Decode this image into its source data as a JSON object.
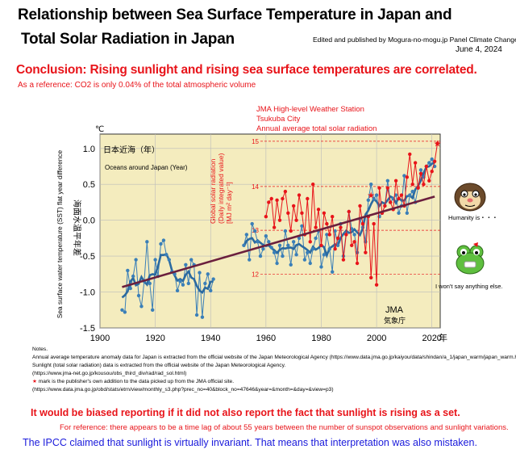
{
  "header": {
    "title_line1": "Relationship between Sea Surface Temperature in Japan and",
    "title_line2": "Total Solar Radiation in Japan",
    "credit": "Edited and published by Mogura-no-mogu.jp  Panel  Climate Change",
    "date": "June 4, 2024",
    "conclusion": "Conclusion: Rising sunlight and rising sea surface temperatures are correlated.",
    "co2_note": "As a reference: CO2 is only 0.04% of the total atmospheric volume"
  },
  "colors": {
    "red": "#e8141a",
    "blue_series": "#3a7fb8",
    "trend": "#6b1f3d",
    "plot_bg": "#f4ecbe",
    "ipcc_blue": "#1a1adb"
  },
  "chart_data": {
    "type": "line",
    "unit_label": "℃",
    "ylabel": "Sea surface water temperature (SST) flat year difference",
    "ylabel_jp": "海面水温平年差",
    "inner_label_jp": "日本近海（年）",
    "inner_label_en": "Oceans around Japan (Year)",
    "source_jp": "JMA",
    "source_jp2": "気象庁",
    "xlim": [
      1900,
      2023
    ],
    "ylim": [
      -1.5,
      1.2
    ],
    "x_ticks": [
      1900,
      1920,
      1940,
      1960,
      1980,
      2000,
      2020
    ],
    "x_tick_labels": [
      "1900",
      "1920",
      "1940",
      "1960",
      "1980",
      "2000",
      "2020"
    ],
    "x_unit": "年",
    "y_ticks": [
      1.0,
      0.5,
      0.0,
      -0.5,
      -1.0,
      -1.5
    ],
    "y_tick_labels": [
      "1.0",
      "0.5",
      "0.0",
      "-0.5",
      "-1.0",
      "-1.5"
    ],
    "right_axis": {
      "label_lines": [
        "Global solar radiation",
        "(Daily integrated value)",
        "[MJ m² day⁻¹]"
      ],
      "ticks": [
        15,
        14,
        13,
        12
      ],
      "tick_labels": [
        "15",
        "14",
        "13",
        "12"
      ],
      "sst_equivalent": [
        1.1,
        0.47,
        -0.14,
        -0.75
      ]
    },
    "station_annotation": [
      "JMA High-level Weather Station",
      "Tsukuba City",
      "Annual average total solar radiation"
    ],
    "trend": {
      "x": [
        1908,
        2021
      ],
      "y": [
        -0.93,
        0.33
      ]
    },
    "series": [
      {
        "name": "SST anomaly (annual)",
        "x": [
          1908,
          1909,
          1910,
          1911,
          1912,
          1913,
          1914,
          1915,
          1916,
          1917,
          1918,
          1919,
          1920,
          1921,
          1922,
          1923,
          1924,
          1925,
          1926,
          1927,
          1928,
          1929,
          1930,
          1931,
          1932,
          1933,
          1934,
          1935,
          1936,
          1937,
          1938,
          1939,
          1940,
          1941,
          1952,
          1953,
          1954,
          1955,
          1956,
          1957,
          1958,
          1959,
          1960,
          1961,
          1962,
          1963,
          1964,
          1965,
          1966,
          1967,
          1968,
          1969,
          1970,
          1971,
          1972,
          1973,
          1974,
          1975,
          1976,
          1977,
          1978,
          1979,
          1980,
          1981,
          1982,
          1983,
          1984,
          1985,
          1986,
          1987,
          1988,
          1989,
          1990,
          1991,
          1992,
          1993,
          1994,
          1995,
          1996,
          1997,
          1998,
          1999,
          2000,
          2001,
          2002,
          2003,
          2004,
          2005,
          2006,
          2007,
          2008,
          2009,
          2010,
          2011,
          2012,
          2013,
          2014,
          2015,
          2016,
          2017,
          2018,
          2019,
          2020,
          2021
        ],
        "values": [
          -1.25,
          -1.28,
          -0.7,
          -0.95,
          -0.78,
          -0.55,
          -1.05,
          -1.2,
          -0.85,
          -0.3,
          -0.88,
          -1.25,
          -0.55,
          -0.78,
          -0.33,
          -0.28,
          -0.48,
          -0.55,
          -0.72,
          -0.75,
          -0.98,
          -0.85,
          -0.9,
          -0.62,
          -0.88,
          -0.55,
          -0.62,
          -1.32,
          -0.73,
          -1.35,
          -0.88,
          -0.75,
          -0.98,
          -0.82,
          -0.35,
          -0.2,
          -0.55,
          -0.05,
          -0.15,
          -0.3,
          -0.5,
          -0.4,
          -0.22,
          -0.3,
          -0.38,
          -0.45,
          -0.6,
          -0.35,
          -0.5,
          -0.15,
          -0.35,
          -0.62,
          -0.3,
          -0.48,
          -0.25,
          -0.08,
          -0.55,
          -0.45,
          -0.6,
          -0.4,
          -0.25,
          -0.15,
          -0.65,
          -0.48,
          -0.2,
          -0.4,
          -0.72,
          -0.15,
          -0.35,
          -0.05,
          -0.5,
          -0.18,
          0.12,
          -0.12,
          -0.2,
          -0.45,
          0.02,
          -0.1,
          -0.3,
          0.28,
          0.5,
          0.3,
          0.35,
          0.05,
          0.1,
          0.2,
          0.55,
          0.25,
          0.3,
          0.35,
          0.1,
          0.2,
          0.62,
          0.1,
          0.35,
          0.4,
          0.25,
          0.45,
          0.7,
          0.6,
          0.75,
          0.8,
          0.85,
          0.75
        ]
      },
      {
        "name": "Solar radiation (SST scale)",
        "x": [
          1960,
          1961,
          1962,
          1963,
          1964,
          1965,
          1966,
          1967,
          1968,
          1969,
          1970,
          1971,
          1972,
          1973,
          1974,
          1975,
          1976,
          1977,
          1978,
          1979,
          1980,
          1981,
          1982,
          1983,
          1984,
          1985,
          1986,
          1987,
          1988,
          1989,
          1990,
          1991,
          1992,
          1993,
          1994,
          1995,
          1996,
          1997,
          1998,
          1999,
          2000,
          2001,
          2002,
          2003,
          2004,
          2005,
          2006,
          2007,
          2008,
          2009,
          2010,
          2011,
          2012,
          2013,
          2014,
          2015,
          2016,
          2017,
          2018,
          2019,
          2020,
          2021,
          2022
        ],
        "values": [
          0.05,
          0.25,
          0.3,
          -0.1,
          0.28,
          0.0,
          0.3,
          0.4,
          0.1,
          -0.15,
          0.2,
          0.0,
          0.35,
          0.1,
          -0.2,
          0.3,
          -0.3,
          0.5,
          -0.1,
          0.15,
          -0.35,
          0.1,
          -0.05,
          -0.2,
          0.05,
          -0.4,
          -0.25,
          -0.1,
          -0.55,
          -0.2,
          0.12,
          -0.35,
          -0.3,
          -0.6,
          0.2,
          -0.05,
          -0.45,
          0.05,
          -0.8,
          -0.05,
          -0.9,
          0.45,
          0.1,
          0.2,
          0.45,
          0.25,
          0.15,
          0.55,
          0.3,
          0.35,
          0.2,
          0.6,
          0.92,
          0.5,
          0.8,
          0.45,
          0.65,
          0.5,
          0.75,
          0.55,
          0.68,
          0.82,
          1.07
        ]
      }
    ],
    "annotations": {
      "star_red": [
        [
          1998,
          0.35
        ],
        [
          2022,
          1.07
        ]
      ]
    }
  },
  "characters": {
    "mole_caption": "Humanity is・・・",
    "frog_caption": "I won't say anything else."
  },
  "notes": {
    "title": "Notes.",
    "line1": "Annual average temperature anomaly data for Japan is extracted from the official website of the Japan Meteorological Agency (https://www.data.jma.go.jp/kaiyou/data/shindan/a_1/japan_warm/japan_warm.html)",
    "line2": "Sunlight (total solar radiation) data is extracted from the official website of the Japan Meteorological Agency.",
    "line3": "(https://www.jma-net.go.jp/kousou/obs_third_div/rad/rad_sol.html)",
    "line4_star": "★",
    "line4": " mark is the publisher's own addition to the data picked up from the JMA official site.",
    "line5": "(https://www.data.jma.go.jp/obd/stats/etrn/view/monthly_s3.php?prec_no=40&block_no=47646&year=&month=&day=&view=p3)"
  },
  "footer": {
    "biased": "It would be biased reporting if it did not also report the fact that sunlight is rising as a set.",
    "reference": "For reference: there appears to be a time lag of about 55 years between the number of sunspot observations and sunlight variations.",
    "ipcc": "The IPCC claimed that sunlight is virtually invariant. That means that interpretation was also mistaken."
  }
}
